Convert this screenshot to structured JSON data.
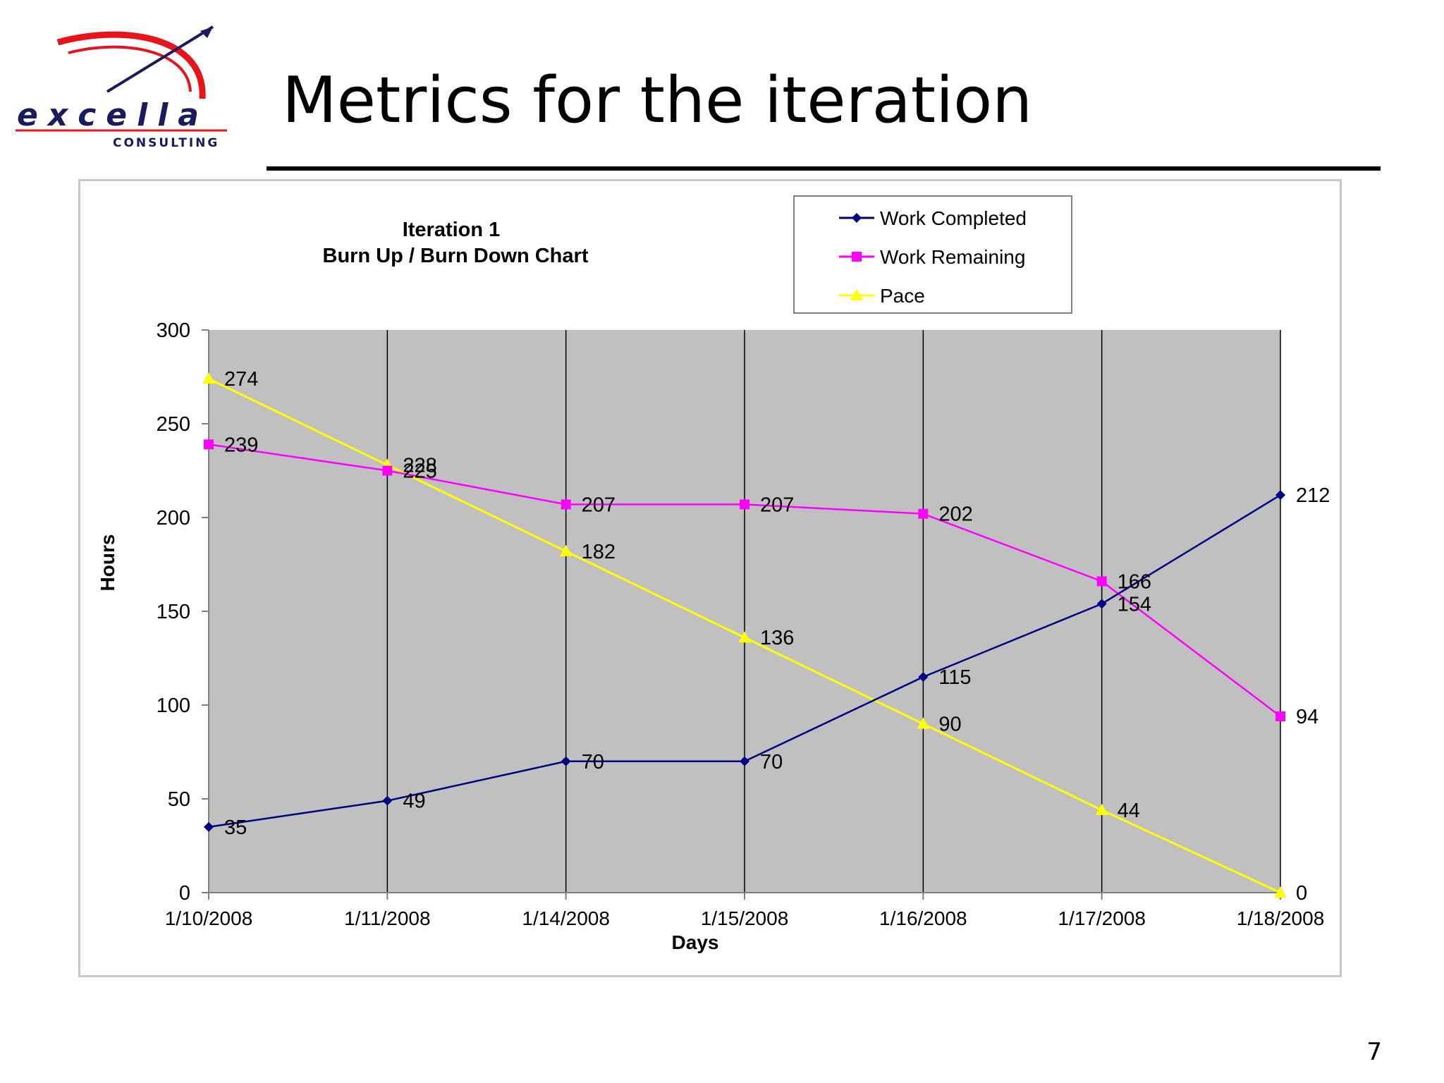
{
  "slide": {
    "title": "Metrics for the iteration",
    "page_number": "7",
    "logo": {
      "wordmark": "excella",
      "tagline": "CONSULTING"
    }
  },
  "colors": {
    "plot_background": "#c0c0c0",
    "work_completed": "#000080",
    "work_remaining": "#ff00ff",
    "pace": "#ffff00",
    "logo_red": "#e8141c",
    "logo_navy": "#1a1a5e"
  },
  "chart_data": {
    "type": "line",
    "title": "Iteration 1",
    "subtitle": "Burn Up / Burn Down Chart",
    "xlabel": "Days",
    "ylabel": "Hours",
    "categories": [
      "1/10/2008",
      "1/11/2008",
      "1/14/2008",
      "1/15/2008",
      "1/16/2008",
      "1/17/2008",
      "1/18/2008"
    ],
    "ylim": [
      0,
      300
    ],
    "yticks": [
      0,
      50,
      100,
      150,
      200,
      250,
      300
    ],
    "grid": "vertical",
    "legend_position": "top-right",
    "series": [
      {
        "name": "Work Completed",
        "values": [
          35,
          49,
          70,
          70,
          115,
          154,
          212
        ],
        "color": "#000080",
        "marker": "diamond"
      },
      {
        "name": "Work Remaining",
        "values": [
          239,
          225,
          207,
          207,
          202,
          166,
          94
        ],
        "color": "#ff00ff",
        "marker": "square"
      },
      {
        "name": "Pace",
        "values": [
          274,
          228,
          182,
          136,
          90,
          44,
          0
        ],
        "color": "#ffff00",
        "marker": "triangle"
      }
    ]
  }
}
